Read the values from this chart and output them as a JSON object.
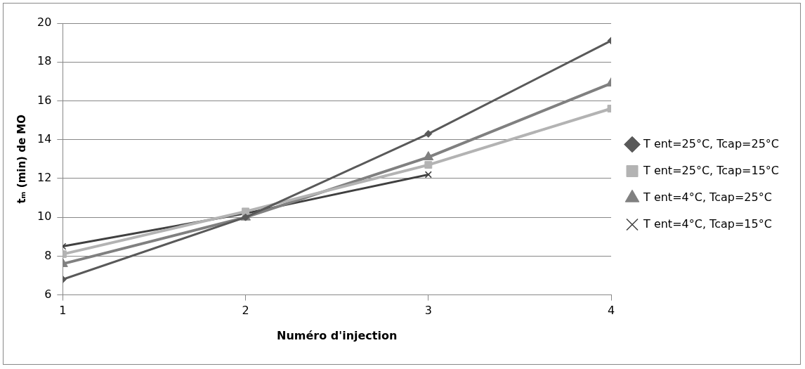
{
  "chart_data": {
    "type": "line",
    "xlabel": "Numéro d'injection",
    "ylabel": "tₘ (min) de MO",
    "x": [
      1,
      2,
      3,
      4
    ],
    "xlim": [
      1,
      4
    ],
    "xticks": [
      1,
      2,
      3,
      4
    ],
    "ylim": [
      6,
      20
    ],
    "yticks": [
      6,
      8,
      10,
      12,
      14,
      16,
      18,
      20
    ],
    "grid": "y",
    "legend": "right",
    "line_style": "solid",
    "series": [
      {
        "name": "T ent=25°C, Tcap=25°C",
        "color": "#595959",
        "marker": "diamond",
        "values": [
          6.8,
          10.0,
          14.3,
          19.1
        ]
      },
      {
        "name": "T ent=25°C, Tcap=15°C",
        "color": "#b3b3b3",
        "marker": "square",
        "values": [
          8.1,
          10.3,
          12.7,
          15.6
        ]
      },
      {
        "name": "T ent=4°C, Tcap=25°C",
        "color": "#808080",
        "marker": "triangle",
        "values": [
          7.6,
          10.0,
          13.1,
          16.9
        ]
      },
      {
        "name": "T ent=4°C, Tcap=15°C",
        "color": "#404040",
        "marker": "cross",
        "values": [
          8.5,
          10.2,
          12.2,
          null
        ]
      }
    ]
  }
}
